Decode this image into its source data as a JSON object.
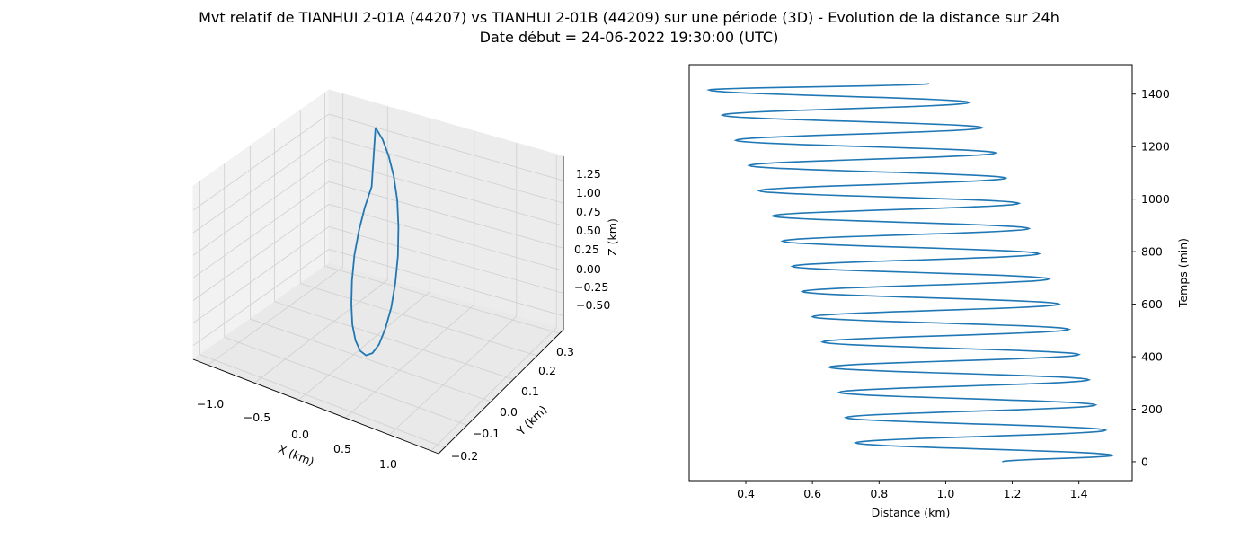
{
  "title": {
    "line1": "Mvt relatif de TIANHUI 2-01A (44207) vs TIANHUI 2-01B (44209) sur une période (3D) - Evolution de la distance sur 24h",
    "line2": "Date début = 24-06-2022 19:30:00 (UTC)"
  },
  "colors": {
    "series": "#1f77b4",
    "pane": "#f2f2f2",
    "grid": "#cfcfcf"
  },
  "chart_data": [
    {
      "type": "line",
      "subtype": "3d-line",
      "xlabel": "X (km)",
      "ylabel": "Y (km)",
      "zlabel": "Z (km)",
      "x_ticks": [
        "−1.0",
        "−0.5",
        "0.0",
        "0.5",
        "1.0"
      ],
      "y_ticks": [
        "−0.2",
        "−0.1",
        "0.0",
        "0.1",
        "0.2",
        "0.3"
      ],
      "z_ticks": [
        "−0.50",
        "−0.25",
        "0.00",
        "0.25",
        "0.50",
        "0.75",
        "1.00",
        "1.25"
      ],
      "xlim": [
        -1.15,
        1.15
      ],
      "ylim": [
        -0.23,
        0.33
      ],
      "zlim": [
        -0.6,
        1.45
      ],
      "grid": true,
      "series": [
        {
          "x": [
            0.0,
            0.29,
            0.55,
            0.77,
            0.93,
            1.0,
            0.99,
            0.89,
            0.72,
            0.48,
            0.21,
            -0.07,
            -0.35,
            -0.6,
            -0.8,
            -0.93,
            -0.98,
            -0.95,
            -0.85,
            -0.67,
            -0.44,
            -0.17,
            0.0
          ],
          "y": [
            0.05,
            0.01,
            -0.03,
            -0.065,
            -0.095,
            -0.115,
            -0.12,
            -0.11,
            -0.085,
            -0.05,
            -0.01,
            0.035,
            0.08,
            0.12,
            0.15,
            0.17,
            0.18,
            0.175,
            0.16,
            0.14,
            0.11,
            0.08,
            0.05
          ],
          "z": [
            1.3,
            1.28,
            1.22,
            1.12,
            0.98,
            0.8,
            0.58,
            0.35,
            0.12,
            -0.1,
            -0.29,
            -0.43,
            -0.52,
            -0.55,
            -0.52,
            -0.43,
            -0.29,
            -0.1,
            0.12,
            0.35,
            0.58,
            0.8,
            1.3
          ]
        }
      ]
    },
    {
      "type": "line",
      "xlabel": "Distance (km)",
      "ylabel": "Temps (min)",
      "x_ticks": [
        0.4,
        0.6,
        0.8,
        1.0,
        1.2,
        1.4
      ],
      "y_ticks": [
        0,
        200,
        400,
        600,
        800,
        1000,
        1200,
        1400
      ],
      "xlim": [
        0.23,
        1.56
      ],
      "ylim": [
        -72,
        1512
      ],
      "y_axis_side": "right",
      "grid": false,
      "series": [
        {
          "x": [
            1.17,
            1.5,
            0.73,
            1.48,
            0.7,
            1.45,
            0.68,
            1.43,
            0.65,
            1.4,
            0.63,
            1.37,
            0.6,
            1.34,
            0.57,
            1.31,
            0.54,
            1.28,
            0.51,
            1.25,
            0.48,
            1.22,
            0.44,
            1.18,
            0.41,
            1.15,
            0.37,
            1.11,
            0.33,
            1.07,
            0.29,
            0.95
          ],
          "y": [
            0,
            24,
            72,
            120,
            168,
            216,
            264,
            312,
            360,
            408,
            456,
            504,
            552,
            600,
            648,
            696,
            744,
            792,
            840,
            888,
            936,
            984,
            1032,
            1080,
            1128,
            1176,
            1224,
            1272,
            1320,
            1368,
            1416,
            1440
          ]
        }
      ]
    }
  ]
}
